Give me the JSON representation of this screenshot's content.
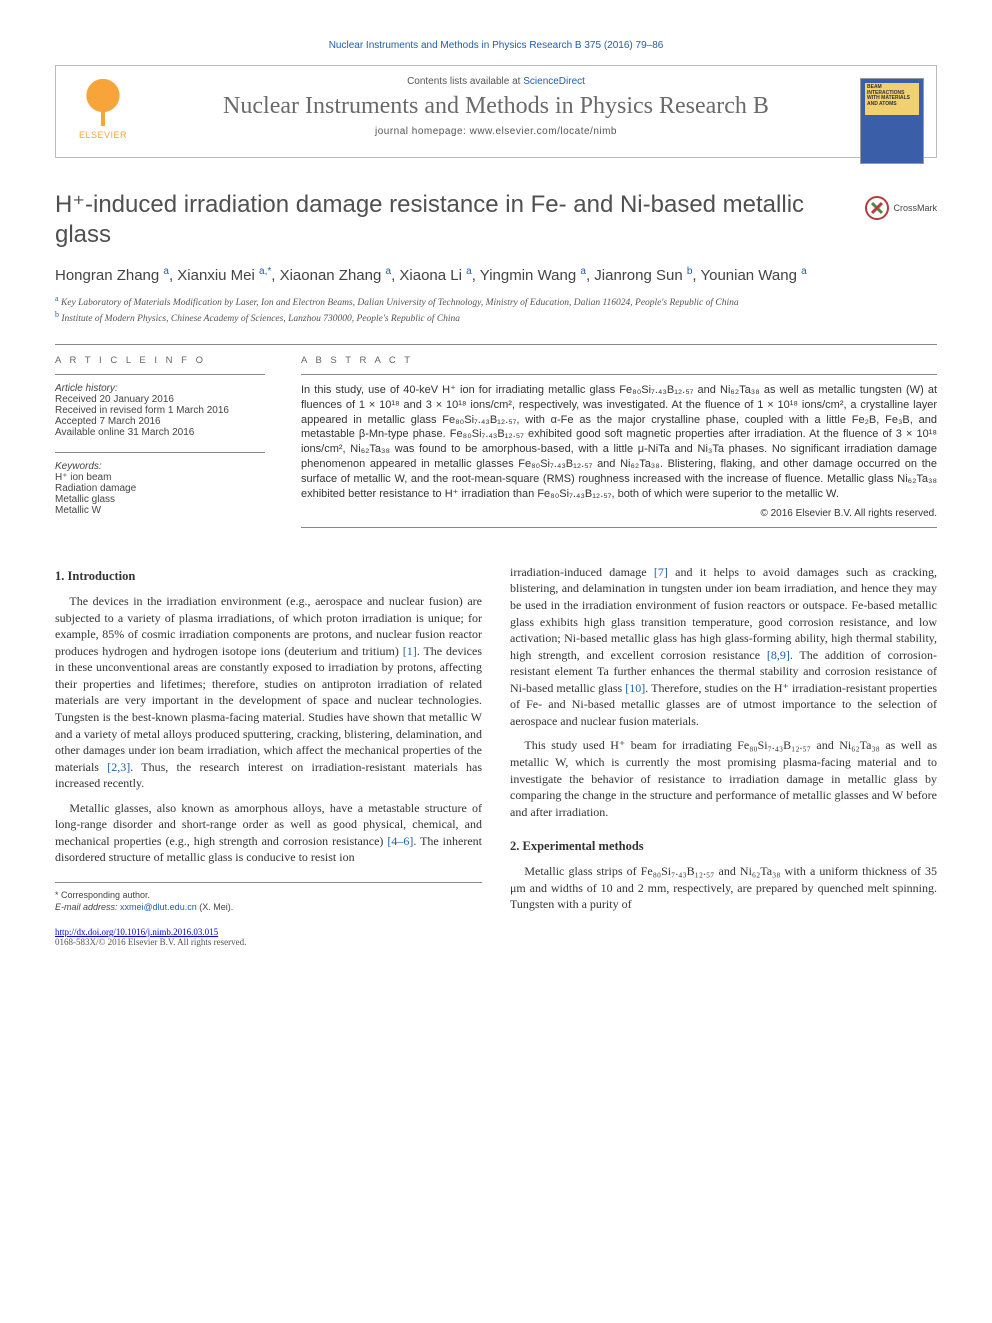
{
  "running_head": "Nuclear Instruments and Methods in Physics Research B 375 (2016) 79–86",
  "header": {
    "contents_prefix": "Contents lists available at ",
    "contents_link": "ScienceDirect",
    "journal_name": "Nuclear Instruments and Methods in Physics Research B",
    "homepage_prefix": "journal homepage: ",
    "homepage_url": "www.elsevier.com/locate/nimb",
    "publisher_name": "ELSEVIER",
    "cover_text": "BEAM INTERACTIONS WITH MATERIALS AND ATOMS"
  },
  "title": "H⁺-induced irradiation damage resistance in Fe- and Ni-based metallic glass",
  "crossmark_label": "CrossMark",
  "authors_html": "Hongran Zhang <span class='aff'>a</span>, Xianxiu Mei <span class='aff'>a,*</span>, Xiaonan Zhang <span class='aff'>a</span>, Xiaona Li <span class='aff'>a</span>, Yingmin Wang <span class='aff'>a</span>, Jianrong Sun <span class='aff'>b</span>, Younian Wang <span class='aff'>a</span>",
  "affiliations": {
    "a": "Key Laboratory of Materials Modification by Laser, Ion and Electron Beams, Dalian University of Technology, Ministry of Education, Dalian 116024, People's Republic of China",
    "b": "Institute of Modern Physics, Chinese Academy of Sciences, Lanzhou 730000, People's Republic of China"
  },
  "article_info": {
    "head": "A R T I C L E   I N F O",
    "history_label": "Article history:",
    "received": "Received 20 January 2016",
    "revised": "Received in revised form 1 March 2016",
    "accepted": "Accepted 7 March 2016",
    "online": "Available online 31 March 2016",
    "keywords_label": "Keywords:",
    "keywords": [
      "H⁺ ion beam",
      "Radiation damage",
      "Metallic glass",
      "Metallic W"
    ]
  },
  "abstract": {
    "head": "A B S T R A C T",
    "body": "In this study, use of 40-keV H⁺ ion for irradiating metallic glass Fe₈₀Si₇.₄₃B₁₂.₅₇ and Ni₆₂Ta₃₈ as well as metallic tungsten (W) at fluences of 1 × 10¹⁸ and 3 × 10¹⁸ ions/cm², respectively, was investigated. At the fluence of 1 × 10¹⁸ ions/cm², a crystalline layer appeared in metallic glass Fe₈₀Si₇.₄₃B₁₂.₅₇, with α-Fe as the major crystalline phase, coupled with a little Fe₂B, Fe₃B, and metastable β-Mn-type phase. Fe₈₀Si₇.₄₃B₁₂.₅₇ exhibited good soft magnetic properties after irradiation. At the fluence of 3 × 10¹⁸ ions/cm², Ni₆₂Ta₃₈ was found to be amorphous-based, with a little μ-NiTa and Ni₃Ta phases. No significant irradiation damage phenomenon appeared in metallic glasses Fe₈₀Si₇.₄₃B₁₂.₅₇ and Ni₆₂Ta₃₈. Blistering, flaking, and other damage occurred on the surface of metallic W, and the root-mean-square (RMS) roughness increased with the increase of fluence. Metallic glass Ni₆₂Ta₃₈ exhibited better resistance to H⁺ irradiation than Fe₈₀Si₇.₄₃B₁₂.₅₇, both of which were superior to the metallic W.",
    "copyright": "© 2016 Elsevier B.V. All rights reserved."
  },
  "sections": {
    "intro_head": "1. Introduction",
    "intro_p1": "The devices in the irradiation environment (e.g., aerospace and nuclear fusion) are subjected to a variety of plasma irradiations, of which proton irradiation is unique; for example, 85% of cosmic irradiation components are protons, and nuclear fusion reactor produces hydrogen and hydrogen isotope ions (deuterium and tritium) ",
    "intro_p1_ref": "[1]",
    "intro_p1_cont": ". The devices in these unconventional areas are constantly exposed to irradiation by protons, affecting their properties and lifetimes; therefore, studies on antiproton irradiation of related materials are very important in the development of space and nuclear technologies. Tungsten is the best-known plasma-facing material. Studies have shown that metallic W and a variety of metal alloys produced sputtering, cracking, blistering, delamination, and other damages under ion beam irradiation, which affect the mechanical properties of the materials ",
    "intro_p1_ref2": "[2,3]",
    "intro_p1_end": ". Thus, the research interest on irradiation-resistant materials has increased recently.",
    "intro_p2a": "Metallic glasses, also known as amorphous alloys, have a metastable structure of long-range disorder and short-range order as well as good physical, chemical, and mechanical properties (e.g., high strength and corrosion resistance) ",
    "intro_p2_ref": "[4–6]",
    "intro_p2b": ". The inherent disordered structure of metallic glass is conducive to resist ion",
    "intro_p2c": "irradiation-induced damage ",
    "intro_p2_ref2": "[7]",
    "intro_p2d": " and it helps to avoid damages such as cracking, blistering, and delamination in tungsten under ion beam irradiation, and hence they may be used in the irradiation environment of fusion reactors or outspace. Fe-based metallic glass exhibits high glass transition temperature, good corrosion resistance, and low activation; Ni-based metallic glass has high glass-forming ability, high thermal stability, high strength, and excellent corrosion resistance ",
    "intro_p2_ref3": "[8,9]",
    "intro_p2e": ". The addition of corrosion-resistant element Ta further enhances the thermal stability and corrosion resistance of Ni-based metallic glass ",
    "intro_p2_ref4": "[10]",
    "intro_p2f": ". Therefore, studies on the H⁺ irradiation-resistant properties of Fe- and Ni-based metallic glasses are of utmost importance to the selection of aerospace and nuclear fusion materials.",
    "intro_p3": "This study used H⁺ beam for irradiating Fe₈₀Si₇.₄₃B₁₂.₅₇ and Ni₆₂Ta₃₈ as well as metallic W, which is currently the most promising plasma-facing material and to investigate the behavior of resistance to irradiation damage in metallic glass by comparing the change in the structure and performance of metallic glasses and W before and after irradiation.",
    "methods_head": "2. Experimental methods",
    "methods_p1": "Metallic glass strips of Fe₈₀Si₇.₄₃B₁₂.₅₇ and Ni₆₂Ta₃₈ with a uniform thickness of 35 μm and widths of 10 and 2 mm, respectively, are prepared by quenched melt spinning. Tungsten with a purity of"
  },
  "footnotes": {
    "corr_label": "* Corresponding author.",
    "email_label": "E-mail address: ",
    "email": "xxmei@dlut.edu.cn",
    "email_suffix": " (X. Mei).",
    "doi": "http://dx.doi.org/10.1016/j.nimb.2016.03.015",
    "issn": "0168-583X/© 2016 Elsevier B.V. All rights reserved."
  },
  "colors": {
    "link": "#2060a8",
    "text": "#333333",
    "heading_gray": "#505050",
    "elsevier_orange": "#f7a43a",
    "cover_blue": "#3b5ea8",
    "cover_yellow": "#f0d070"
  }
}
